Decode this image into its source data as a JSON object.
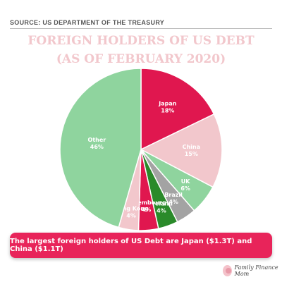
{
  "source": "SOURCE: US DEPARTMENT OF THE TREASURY",
  "brand": "Family Finance Mom",
  "banner": "The largest foreign holders of US Debt are Japan ($1.3T) and China ($1.1T)",
  "chart_data": {
    "type": "pie",
    "title": [
      "FOREIGN HOLDERS OF US DEBT",
      "(AS OF FEBRUARY 2020)"
    ],
    "slices": [
      {
        "label": "Japan",
        "value": 18,
        "value_label": "18%",
        "color": "#e0174f"
      },
      {
        "label": "China",
        "value": 15,
        "value_label": "15%",
        "color": "#f2c7cc"
      },
      {
        "label": "UK",
        "value": 6,
        "value_label": "6%",
        "color": "#8fd49e"
      },
      {
        "label": "Brazil",
        "value": 4,
        "value_label": "4%",
        "color": "#a3a3a3"
      },
      {
        "label": "Ireland",
        "value": 4,
        "value_label": "4%",
        "color": "#2a8a2a"
      },
      {
        "label": "Luxembourg",
        "value": 4,
        "value_label": "4%",
        "color": "#e0174f"
      },
      {
        "label": "Hong Kong",
        "value": 4,
        "value_label": "4%",
        "color": "#f2c7cc"
      },
      {
        "label": "Other",
        "value": 46,
        "value_label": "46%",
        "color": "#8fd49e"
      }
    ]
  }
}
